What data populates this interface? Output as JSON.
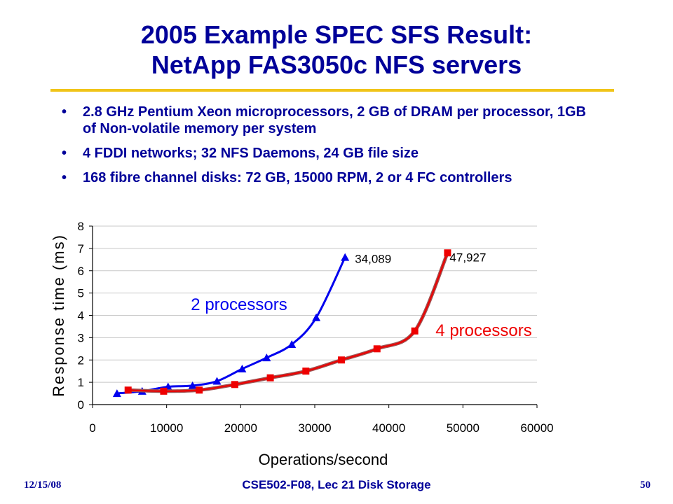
{
  "slide": {
    "title_line1": "2005 Example SPEC SFS Result:",
    "title_line2": "NetApp FAS3050c NFS servers",
    "bullets": [
      "2.8 GHz Pentium Xeon microprocessors, 2 GB of DRAM per processor, 1GB of Non-volatile memory per system",
      "4 FDDI networks; 32 NFS Daemons, 24 GB file size",
      "168 fibre channel disks: 72 GB, 15000 RPM, 2 or 4 FC controllers"
    ],
    "bullet_symbol": "•"
  },
  "footer": {
    "date": "12/15/08",
    "course": "CSE502-F08, Lec 21 Disk Storage",
    "page": "50"
  },
  "colors": {
    "title": "#000099",
    "rule": "#f0c419",
    "series_2proc": "#0000ee",
    "series_4proc": "#ee0000",
    "series_4proc_outline": "#a05050"
  },
  "chart_data": {
    "type": "line",
    "xlabel": "Operations/second",
    "ylabel": "Response time (ms)",
    "xlim": [
      0,
      60000
    ],
    "ylim": [
      0,
      8
    ],
    "xticks": [
      0,
      10000,
      20000,
      30000,
      40000,
      50000,
      60000
    ],
    "yticks": [
      0,
      1,
      2,
      3,
      4,
      5,
      6,
      7,
      8
    ],
    "grid": "horizontal",
    "series": [
      {
        "name": "2 processors",
        "marker": "triangle",
        "end_label": "34,089",
        "points": [
          [
            3300,
            0.5
          ],
          [
            6700,
            0.6
          ],
          [
            10200,
            0.8
          ],
          [
            13500,
            0.85
          ],
          [
            16800,
            1.05
          ],
          [
            20200,
            1.6
          ],
          [
            23500,
            2.1
          ],
          [
            26900,
            2.7
          ],
          [
            30200,
            3.9
          ],
          [
            34089,
            6.6
          ]
        ]
      },
      {
        "name": "4 processors",
        "marker": "square",
        "end_label": "47,927",
        "points": [
          [
            4800,
            0.65
          ],
          [
            9600,
            0.6
          ],
          [
            14400,
            0.65
          ],
          [
            19200,
            0.9
          ],
          [
            24000,
            1.2
          ],
          [
            28800,
            1.5
          ],
          [
            33600,
            2.0
          ],
          [
            38400,
            2.5
          ],
          [
            43500,
            3.3
          ],
          [
            47927,
            6.8
          ]
        ]
      }
    ]
  }
}
